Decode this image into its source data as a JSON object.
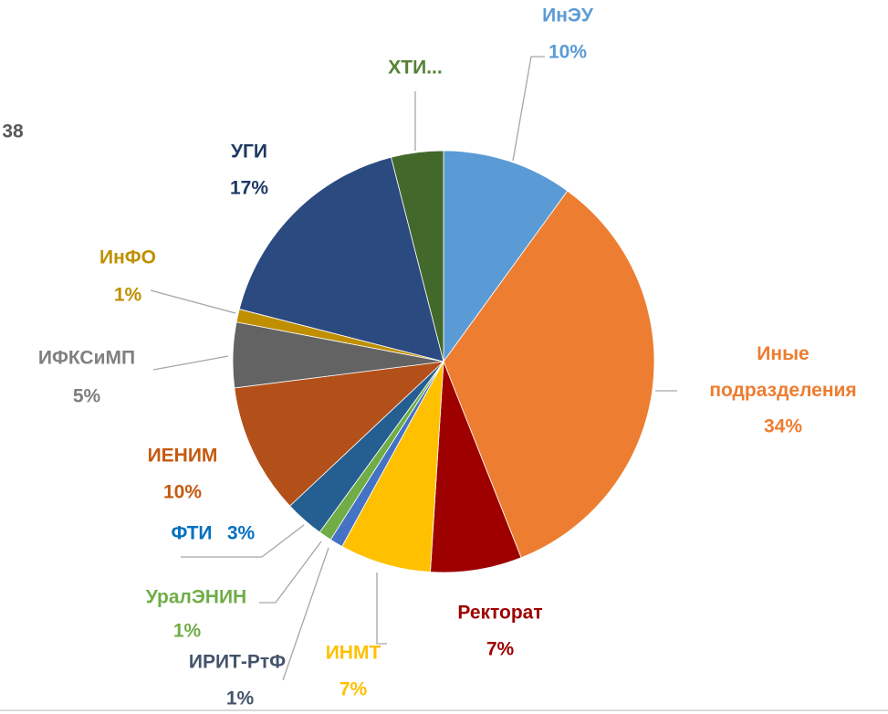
{
  "chart_data": {
    "type": "pie",
    "annotations": [
      "38"
    ],
    "categories": [
      "ИнЭУ",
      "Иные подразделения",
      "Ректорат",
      "ИНМТ",
      "ИРИТ-РтФ",
      "УралЭНИН",
      "ФТИ",
      "ИЕНИМ",
      "ИФКСиМП",
      "ИнФО",
      "УГИ",
      "ХТИ..."
    ],
    "values": [
      10,
      34,
      7,
      7,
      1,
      1,
      3,
      10,
      5,
      1,
      17,
      4
    ],
    "value_labels": [
      "10%",
      "34%",
      "7%",
      "7%",
      "1%",
      "1%",
      "3%",
      "10%",
      "5%",
      "1%",
      "17%",
      null
    ],
    "colors": [
      "#5b9bd5",
      "#ed7d31",
      "#9e0000",
      "#ffc000",
      "#4472c4",
      "#70ad47",
      "#255e91",
      "#b3501a",
      "#636363",
      "#bf8f00",
      "#2b4a80",
      "#43682b"
    ],
    "label_colors": [
      "#5b9bd5",
      "#ed7d31",
      "#9e0000",
      "#ffc000",
      "#44546a",
      "#70ad47",
      "#0070c0",
      "#c55a11",
      "#7f7f7f",
      "#bf9000",
      "#1f3864",
      "#548235"
    ]
  }
}
